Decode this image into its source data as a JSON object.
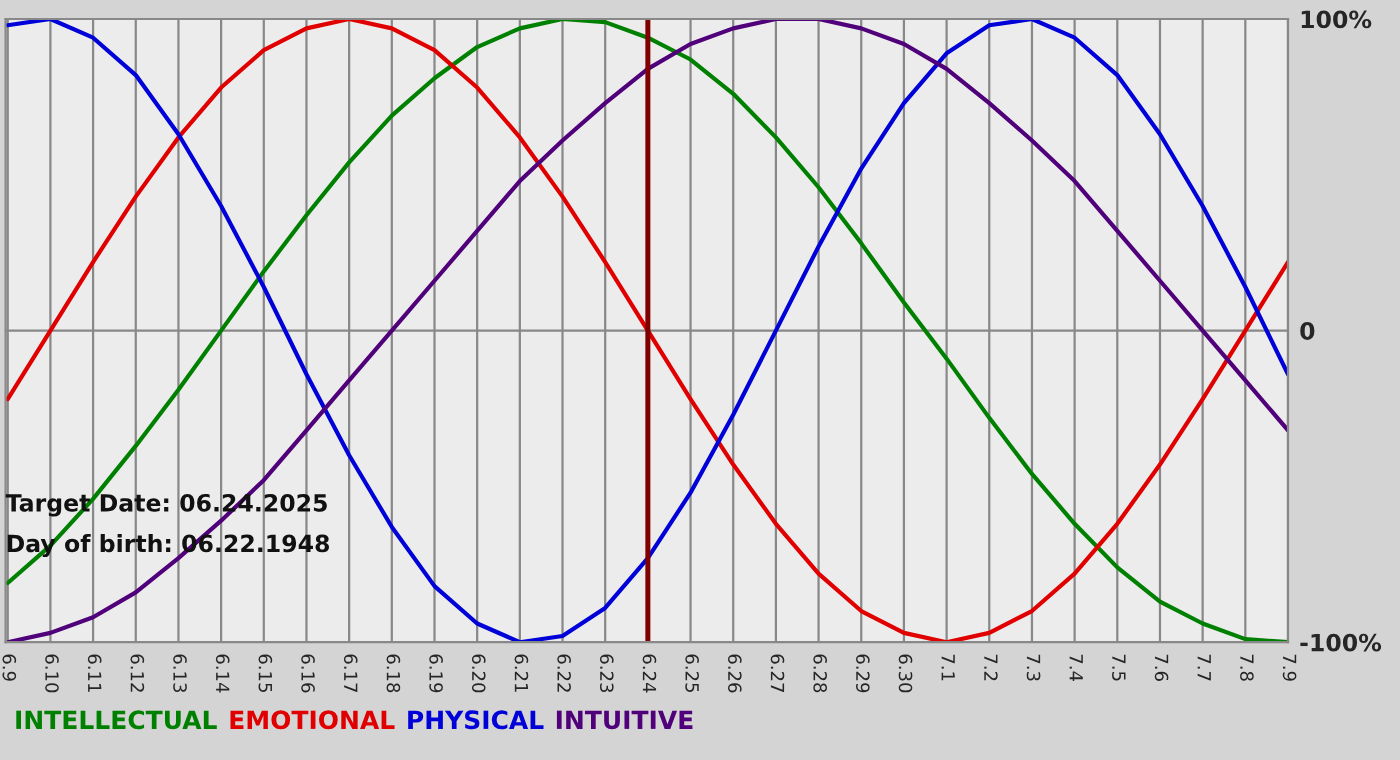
{
  "chart_data": {
    "type": "line",
    "categories": [
      "6.9",
      "6.10",
      "6.11",
      "6.12",
      "6.13",
      "6.14",
      "6.15",
      "6.16",
      "6.17",
      "6.18",
      "6.19",
      "6.20",
      "6.21",
      "6.22",
      "6.23",
      "6.24",
      "6.25",
      "6.26",
      "6.27",
      "6.28",
      "6.29",
      "6.30",
      "7.1",
      "7.2",
      "7.3",
      "7.4",
      "7.5",
      "7.6",
      "7.7",
      "7.8",
      "7.9"
    ],
    "series": [
      {
        "name": "INTELLECTUAL",
        "color": "#008000",
        "values": [
          -81,
          -69,
          -54,
          -37,
          -19,
          0,
          19,
          37,
          54,
          69,
          81,
          91,
          97,
          100,
          99,
          94,
          87,
          76,
          62,
          46,
          28,
          9,
          -9,
          -28,
          -46,
          -62,
          -76,
          -87,
          -94,
          -99,
          -100
        ]
      },
      {
        "name": "EMOTIONAL",
        "color": "#e00000",
        "values": [
          -22,
          0,
          22,
          43,
          62,
          78,
          90,
          97,
          100,
          97,
          90,
          78,
          62,
          43,
          22,
          0,
          -22,
          -43,
          -62,
          -78,
          -90,
          -97,
          -100,
          -97,
          -90,
          -78,
          -62,
          -43,
          -22,
          0,
          22
        ]
      },
      {
        "name": "PHYSICAL",
        "color": "#0000d8",
        "values": [
          98,
          100,
          94,
          82,
          63,
          40,
          14,
          -14,
          -40,
          -63,
          -82,
          -94,
          -100,
          -98,
          -89,
          -73,
          -52,
          -27,
          0,
          27,
          52,
          73,
          89,
          98,
          100,
          94,
          82,
          63,
          40,
          14,
          -14
        ]
      },
      {
        "name": "INTUITIVE",
        "color": "#50007a",
        "values": [
          -100,
          -97,
          -92,
          -84,
          -73,
          -61,
          -48,
          -32,
          -16,
          0,
          16,
          32,
          48,
          61,
          73,
          84,
          92,
          97,
          100,
          100,
          97,
          92,
          84,
          73,
          61,
          48,
          32,
          16,
          0,
          -16,
          -32
        ]
      }
    ],
    "ylim": [
      -100,
      100
    ],
    "yticks": [
      {
        "value": -100,
        "label": "-100%"
      },
      0,
      {
        "value": 100,
        "label": "100%"
      }
    ],
    "ref_lines": [
      {
        "axis": "x",
        "value": "6.24",
        "color": "#800000"
      }
    ],
    "annotations": [
      "Target Date: 06.24.2025",
      "Day of birth: 06.22.1948"
    ],
    "grid": true,
    "legend": "bottom"
  }
}
